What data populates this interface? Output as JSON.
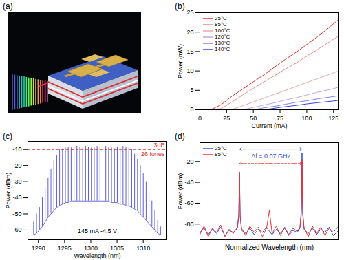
{
  "chart_data": [
    {
      "type": "illustration",
      "title": "(a)"
    },
    {
      "type": "line",
      "title": "(b)",
      "x_label": "Current (mA)",
      "y_label": "Power (mW)",
      "x": [
        0,
        10,
        20,
        30,
        40,
        50,
        60,
        70,
        80,
        90,
        100,
        110,
        120,
        130
      ],
      "xlim": [
        0,
        130
      ],
      "xticks": [
        0,
        25,
        50,
        75,
        100,
        125
      ],
      "ylim": [
        0,
        25
      ],
      "yticks": [
        0,
        5,
        10,
        15,
        20,
        25
      ],
      "legend": "top-left",
      "series": [
        {
          "name": "25°C",
          "color": "#e8332f",
          "values": [
            0,
            0,
            1.3,
            3.5,
            5.3,
            7.2,
            9.0,
            11.0,
            13.0,
            14.8,
            16.8,
            18.8,
            21.0,
            23.3
          ]
        },
        {
          "name": "85°C",
          "color": "#f08a8a",
          "values": [
            0,
            0,
            0.3,
            2.0,
            3.8,
            5.5,
            7.2,
            8.8,
            10.5,
            12.0,
            13.8,
            15.5,
            17.3,
            19.0
          ]
        },
        {
          "name": "100°C",
          "color": "#e9a7a7",
          "values": [
            0,
            0,
            0,
            0.1,
            1.0,
            2.0,
            3.0,
            4.0,
            5.0,
            6.0,
            7.0,
            8.0,
            9.0,
            10.0
          ]
        },
        {
          "name": "120°C",
          "color": "#c3a6e6",
          "values": [
            0,
            0,
            0,
            0,
            0,
            0.6,
            1.2,
            1.8,
            2.5,
            3.1,
            3.8,
            4.5,
            5.1,
            5.8
          ]
        },
        {
          "name": "130°C",
          "color": "#7f86e6",
          "values": [
            0,
            0,
            0,
            0,
            0,
            0,
            0.5,
            0.9,
            1.4,
            1.9,
            2.3,
            2.8,
            3.2,
            3.6
          ]
        },
        {
          "name": "140°C",
          "color": "#3a44d6",
          "values": [
            0,
            0,
            0,
            0,
            0,
            0,
            0,
            0.4,
            0.8,
            1.1,
            1.5,
            1.8,
            2.1,
            2.4
          ]
        }
      ]
    },
    {
      "type": "spectrum",
      "title": "(c)",
      "x_label": "Wavelength (nm)",
      "y_label": "Power (dBm)",
      "color": "#4a4ad8",
      "xlim": [
        1288,
        1314.5
      ],
      "xticks": [
        1290,
        1295,
        1300,
        1305,
        1310
      ],
      "ylim": [
        -66,
        -5
      ],
      "yticks": [
        -60,
        -50,
        -40,
        -30,
        -20,
        -10
      ],
      "x": [
        1289.1,
        1289.65,
        1290.2,
        1290.75,
        1291.3,
        1291.85,
        1292.4,
        1292.95,
        1293.5,
        1294.05,
        1294.6,
        1295.15,
        1295.7,
        1296.25,
        1296.8,
        1297.35,
        1297.9,
        1298.45,
        1299.0,
        1299.55,
        1300.1,
        1300.65,
        1301.2,
        1301.75,
        1302.3,
        1302.85,
        1303.4,
        1303.95,
        1304.5,
        1305.05,
        1305.6,
        1306.15,
        1306.7,
        1307.25,
        1307.8,
        1308.35,
        1308.9,
        1309.45,
        1310.0,
        1310.55,
        1311.1,
        1311.65,
        1312.2,
        1312.75,
        1313.3
      ],
      "values": [
        -55,
        -50,
        -46,
        -40,
        -34,
        -28,
        -22,
        -17,
        -13.5,
        -10,
        -9.5,
        -9,
        -8.5,
        -9,
        -8.5,
        -8,
        -8.5,
        -9,
        -8,
        -8.5,
        -9,
        -8.5,
        -8,
        -8.5,
        -9,
        -8,
        -8.5,
        -9,
        -9.5,
        -8.5,
        -9,
        -8,
        -8.5,
        -9,
        -10,
        -13,
        -16,
        -20,
        -25,
        -30,
        -36,
        -42,
        -48,
        -54,
        -58
      ],
      "floor": [
        -63,
        -62,
        -60,
        -58,
        -55,
        -52,
        -50,
        -48,
        -46,
        -45,
        -44,
        -43,
        -43,
        -42,
        -42,
        -42,
        -42,
        -42,
        -42,
        -42,
        -42,
        -42,
        -42,
        -42,
        -42,
        -42,
        -42,
        -43,
        -43,
        -43,
        -44,
        -44,
        -45,
        -45,
        -46,
        -47,
        -48,
        -50,
        -52,
        -54,
        -56,
        -58,
        -60,
        -62,
        -63
      ],
      "threshold": -10,
      "threshold_label": "3dB",
      "threshold_note": "26 tones",
      "note": "145 mA -4.5 V"
    },
    {
      "type": "line",
      "title": "(d)",
      "x_label": "Normalized Wavelength (nm)",
      "y_label": "Power (dBm)",
      "tick_labels": "y",
      "x": [
        0,
        0.03,
        0.06,
        0.09,
        0.12,
        0.15,
        0.18,
        0.21,
        0.24,
        0.27,
        0.28,
        0.285,
        0.29,
        0.3,
        0.33,
        0.36,
        0.39,
        0.42,
        0.45,
        0.48,
        0.5,
        0.52,
        0.55,
        0.58,
        0.61,
        0.64,
        0.67,
        0.7,
        0.72,
        0.73,
        0.735,
        0.74,
        0.75,
        0.78,
        0.81,
        0.84,
        0.87,
        0.9,
        0.93,
        0.96,
        1.0
      ],
      "xlim": [
        0,
        1
      ],
      "ylim": [
        -95,
        -2
      ],
      "yticks": [
        -80,
        -60,
        -40,
        -20
      ],
      "legend": "top-left",
      "series": [
        {
          "name": "25°C",
          "color": "#2e4fe0",
          "values": [
            -88,
            -84,
            -90,
            -85,
            -89,
            -83,
            -91,
            -86,
            -88,
            -84,
            -72,
            -31,
            -73,
            -86,
            -89,
            -84,
            -90,
            -85,
            -88,
            -83,
            -87,
            -90,
            -85,
            -89,
            -84,
            -91,
            -86,
            -88,
            -84,
            -70,
            -12,
            -71,
            -85,
            -89,
            -84,
            -90,
            -85,
            -88,
            -83,
            -91,
            -86
          ]
        },
        {
          "name": "85°C",
          "color": "#e8332f",
          "values": [
            -90,
            -82,
            -92,
            -84,
            -88,
            -81,
            -92,
            -85,
            -89,
            -83,
            -70,
            -30,
            -72,
            -84,
            -91,
            -82,
            -88,
            -83,
            -92,
            -84,
            -67,
            -89,
            -82,
            -91,
            -83,
            -90,
            -84,
            -87,
            -83,
            -66,
            -18,
            -68,
            -84,
            -92,
            -82,
            -89,
            -83,
            -91,
            -84,
            -88,
            -82
          ]
        }
      ],
      "arrows": [
        {
          "x1": 0.285,
          "x2": 0.735,
          "y": -8,
          "color": "#2e4fe0"
        },
        {
          "x1": 0.285,
          "x2": 0.735,
          "y": -22,
          "color": "#e8332f"
        }
      ],
      "annotation": "Δf = 0.07 GHz"
    }
  ]
}
